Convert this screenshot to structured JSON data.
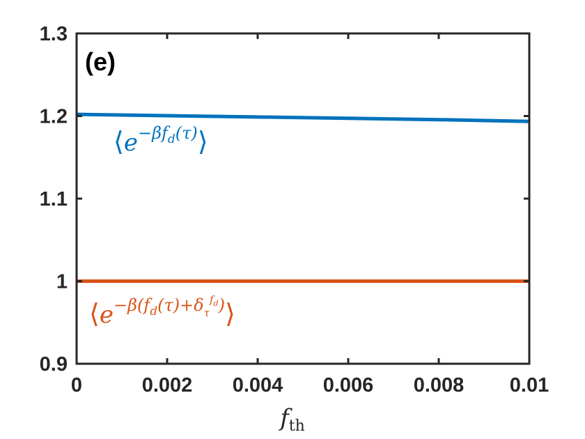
{
  "chart_data": {
    "type": "line",
    "panel_label": "(e)",
    "xlabel": {
      "base": "f",
      "sub": "th"
    },
    "ylabel": "",
    "xlim": [
      0,
      0.01
    ],
    "ylim": [
      0.9,
      1.3
    ],
    "x_ticks": [
      0,
      0.002,
      0.004,
      0.006,
      0.008,
      0.01
    ],
    "x_tick_labels": [
      "0",
      "0.002",
      "0.004",
      "0.006",
      "0.008",
      "0.01"
    ],
    "y_ticks": [
      0.9,
      1.0,
      1.1,
      1.2,
      1.3
    ],
    "y_tick_labels": [
      "0.9",
      "1",
      "1.1",
      "1.2",
      "1.3"
    ],
    "grid": false,
    "series": [
      {
        "color": "#0072BD",
        "x": [
          0,
          0.002,
          0.004,
          0.006,
          0.008,
          0.01
        ],
        "y": [
          1.202,
          1.2004,
          1.1988,
          1.1972,
          1.1956,
          1.1935
        ]
      },
      {
        "color": "#D95319",
        "x": [
          0,
          0.002,
          0.004,
          0.006,
          0.008,
          0.01
        ],
        "y": [
          1.0,
          1.0,
          1.0,
          1.0,
          1.0,
          1.0
        ]
      }
    ],
    "annotations": [
      {
        "series_color": "#0072BD",
        "text": "⟨e^{−βf_d(τ)}⟩"
      },
      {
        "series_color": "#D95319",
        "text": "⟨e^{−β(f_d(τ)+δ_τ^{f_d})}⟩"
      }
    ]
  }
}
